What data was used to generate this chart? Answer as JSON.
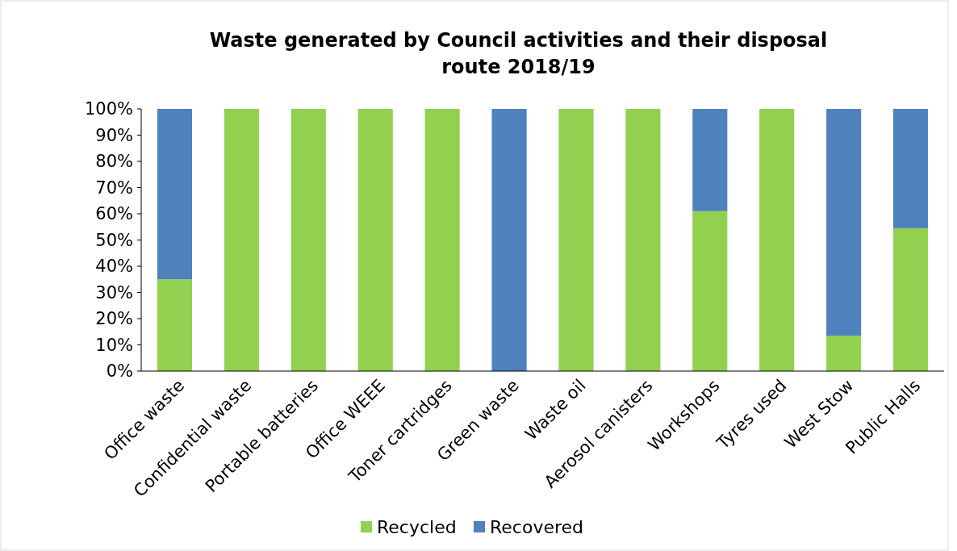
{
  "chart_data": {
    "type": "bar",
    "title": "Waste generated by Council activities and their disposal route 2018/19",
    "stacked": true,
    "legend": "bottom",
    "grid": false,
    "categories": [
      "Office waste",
      "Confidential waste",
      "Portable batteries",
      "Office WEEE",
      "Toner cartridges",
      "Green waste",
      "Waste oil",
      "Aerosol canisters",
      "Workshops",
      "Tyres used",
      "West Stow",
      "Public Halls"
    ],
    "series": [
      {
        "name": "Recycled",
        "color": "#92d050",
        "values": [
          35,
          100,
          100,
          100,
          100,
          0,
          100,
          100,
          61,
          100,
          13.5,
          54.5
        ]
      },
      {
        "name": "Recovered",
        "color": "#4f81bd",
        "values": [
          65,
          0,
          0,
          0,
          0,
          100,
          0,
          0,
          39,
          0,
          86.5,
          45.5
        ]
      }
    ],
    "ylim": [
      0,
      100
    ],
    "yticks": [
      {
        "value": 0,
        "label": "0%"
      },
      {
        "value": 10,
        "label": "10%"
      },
      {
        "value": 20,
        "label": "20%"
      },
      {
        "value": 30,
        "label": "30%"
      },
      {
        "value": 40,
        "label": "40%"
      },
      {
        "value": 50,
        "label": "50%"
      },
      {
        "value": 60,
        "label": "60%"
      },
      {
        "value": 70,
        "label": "70%"
      },
      {
        "value": 80,
        "label": "80%"
      },
      {
        "value": 90,
        "label": "90%"
      },
      {
        "value": 100,
        "label": "100%"
      }
    ]
  }
}
